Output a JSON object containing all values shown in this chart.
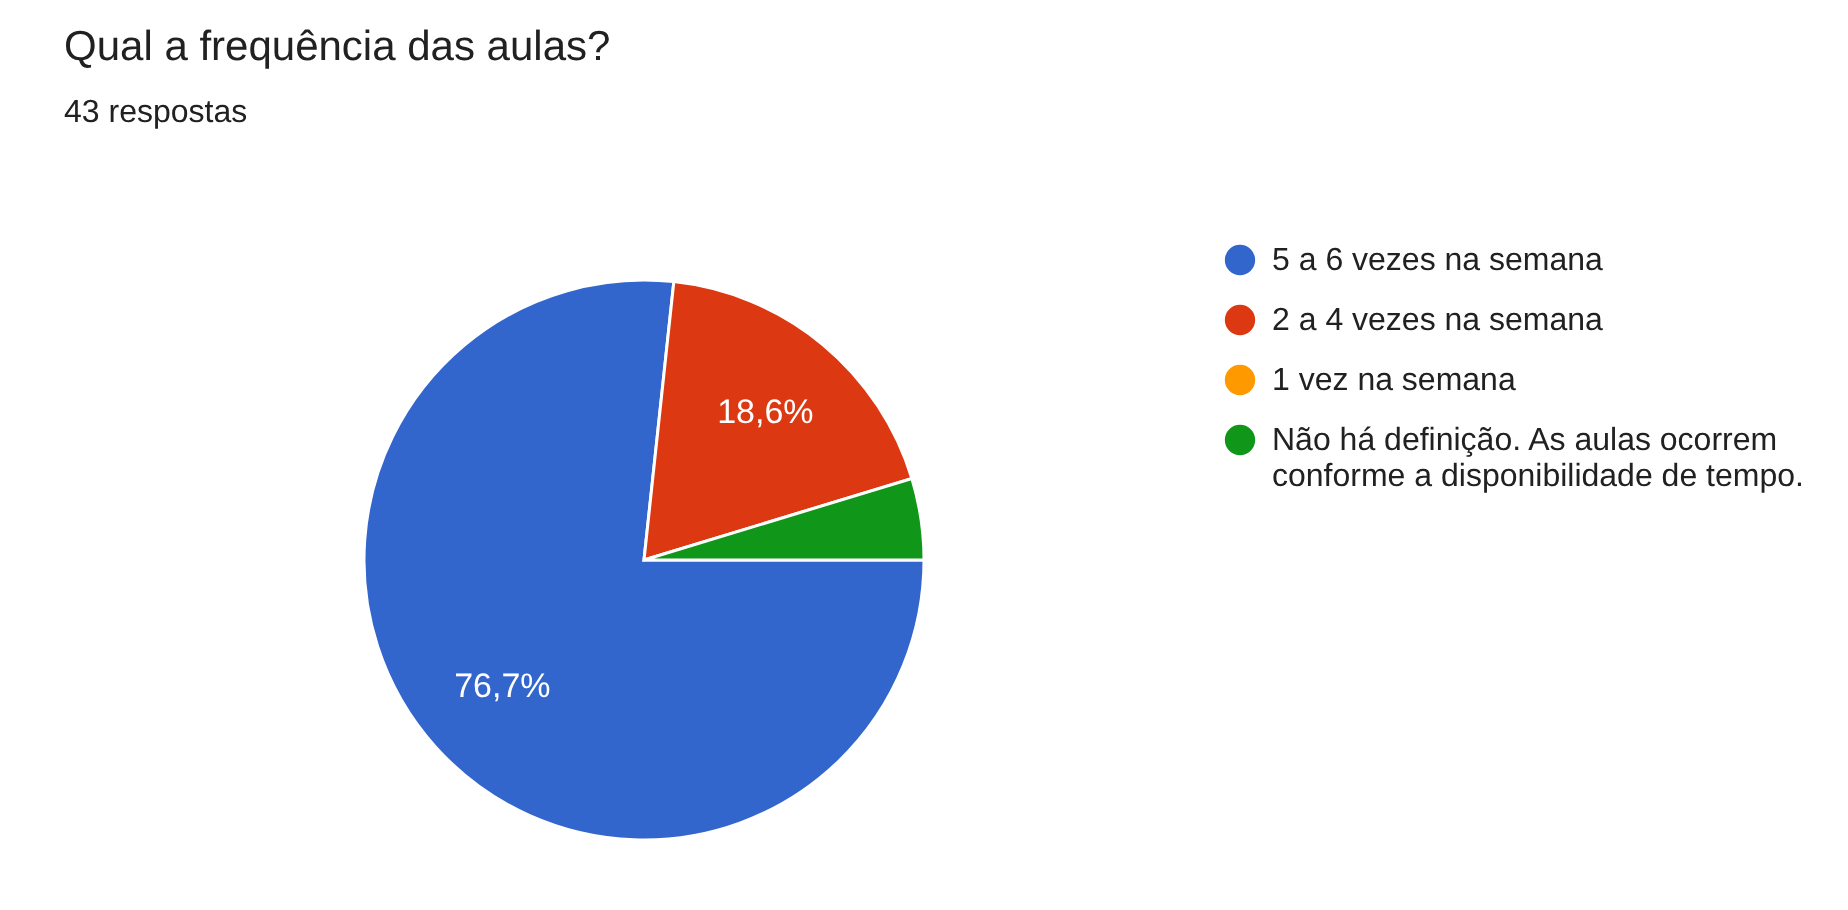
{
  "chart_data": {
    "type": "pie",
    "title": "Qual a frequência das aulas?",
    "subtitle": "43 respostas",
    "categories": [
      "5 a 6 vezes na semana",
      "2 a 4 vezes na semana",
      "1 vez na semana",
      "Não há definição. As aulas ocorrem conforme a disponibilidade de tempo."
    ],
    "values": [
      76.7,
      18.6,
      0,
      4.7
    ],
    "colors": [
      "#3366cc",
      "#dc3912",
      "#ff9900",
      "#109618"
    ],
    "value_labels": [
      "76,7%",
      "18,6%",
      null,
      null
    ],
    "legend": "right"
  }
}
